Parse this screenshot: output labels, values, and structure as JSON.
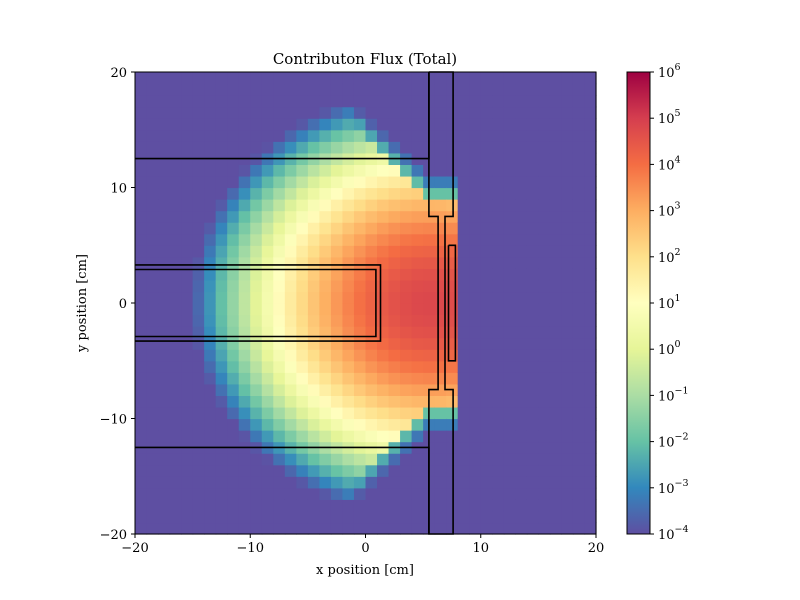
{
  "chart_data": {
    "type": "heatmap",
    "title": "Contributon Flux (Total)",
    "xlabel": "x position [cm]",
    "ylabel": "y position [cm]",
    "xlim": [
      -20,
      20
    ],
    "ylim": [
      -20,
      20
    ],
    "x_ticks": [
      -20,
      -10,
      0,
      10,
      20
    ],
    "y_ticks": [
      -20,
      -10,
      0,
      10,
      20
    ],
    "x_tick_labels": [
      "−20",
      "−10",
      "0",
      "10",
      "20"
    ],
    "y_tick_labels": [
      "−20",
      "−10",
      "0",
      "10",
      "20"
    ],
    "grid": false,
    "colormap": "Spectral_r",
    "colorscale": "log",
    "colorbar": {
      "range": [
        0.0001,
        1000000
      ],
      "exponents": [
        -4,
        -3,
        -2,
        -1,
        0,
        1,
        2,
        3,
        4,
        5,
        6
      ],
      "tick_base": "10"
    },
    "grid_cells": {
      "nx": 40,
      "ny": 40
    },
    "field_model": {
      "source_center": [
        5.5,
        0
      ],
      "peak_log10": 4.8,
      "radial_decay": 0.09,
      "radial_power": 1.9,
      "lateral_decay": 0.0045,
      "cone_slope": 0.92,
      "cone_offset": 3,
      "edge_width": 2.2,
      "shield_x_start": 7.8,
      "edge_log10": -1.4,
      "outside_log10": -4
    },
    "outlines": [
      {
        "name": "upper-slab",
        "points": [
          [
            -20,
            12.5
          ],
          [
            5.5,
            12.5
          ],
          [
            5.5,
            20
          ]
        ]
      },
      {
        "name": "lower-slab",
        "points": [
          [
            -20,
            -12.5
          ],
          [
            5.5,
            -12.5
          ],
          [
            5.5,
            -20
          ]
        ]
      },
      {
        "name": "inner-rod-outer",
        "points": [
          [
            -20,
            3.3
          ],
          [
            1.3,
            3.3
          ],
          [
            1.3,
            -3.3
          ],
          [
            -20,
            -3.3
          ]
        ]
      },
      {
        "name": "inner-rod-inner",
        "points": [
          [
            -20,
            2.9
          ],
          [
            0.9,
            2.9
          ],
          [
            0.9,
            -2.9
          ],
          [
            -20,
            -2.9
          ]
        ]
      },
      {
        "name": "wall-outer",
        "points": [
          [
            5.5,
            20
          ],
          [
            5.5,
            7.5
          ],
          [
            6.3,
            7.5
          ],
          [
            6.3,
            -7.5
          ],
          [
            5.5,
            -7.5
          ],
          [
            5.5,
            -20
          ],
          [
            7.6,
            -20
          ],
          [
            7.6,
            -7.5
          ],
          [
            6.9,
            -7.5
          ],
          [
            6.9,
            7.5
          ],
          [
            7.6,
            7.5
          ],
          [
            7.6,
            20
          ],
          [
            5.5,
            20
          ]
        ]
      },
      {
        "name": "detector-strip",
        "points": [
          [
            7.2,
            5
          ],
          [
            7.8,
            5
          ],
          [
            7.8,
            -5
          ],
          [
            7.2,
            -5
          ],
          [
            7.2,
            5
          ]
        ]
      }
    ]
  }
}
